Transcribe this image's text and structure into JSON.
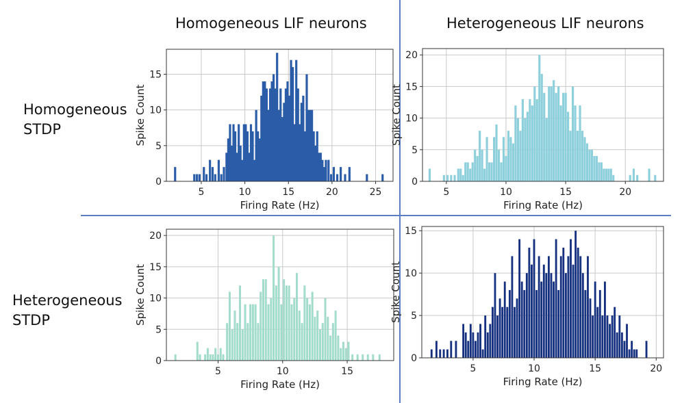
{
  "column_titles": [
    "Homogeneous LIF neurons",
    "Heterogeneous LIF neurons"
  ],
  "row_labels": [
    {
      "line1": "Homogeneous",
      "line2": "STDP"
    },
    {
      "line1": "Heterogeneous",
      "line2": "STDP"
    }
  ],
  "chart_data": [
    {
      "type": "bar",
      "panel": "homogeneous-stdp-homogeneous-lif",
      "color": "#2a5ca8",
      "xlabel": "Firing Rate (Hz)",
      "ylabel": "Spike Count",
      "xlim": [
        1,
        27
      ],
      "ylim": [
        0,
        18.5
      ],
      "xticks": [
        5,
        10,
        15,
        20,
        25
      ],
      "yticks": [
        0,
        5,
        10,
        15
      ],
      "grid": true,
      "bin_width": 0.25,
      "x": [
        2.0,
        4.2,
        4.5,
        4.8,
        5.3,
        5.6,
        6.0,
        6.3,
        6.6,
        7.0,
        7.3,
        7.6,
        7.9,
        8.1,
        8.3,
        8.5,
        8.7,
        8.9,
        9.1,
        9.3,
        9.5,
        9.7,
        9.9,
        10.1,
        10.3,
        10.5,
        10.7,
        10.9,
        11.1,
        11.3,
        11.5,
        11.7,
        11.9,
        12.1,
        12.3,
        12.5,
        12.7,
        12.9,
        13.1,
        13.3,
        13.5,
        13.7,
        13.9,
        14.1,
        14.3,
        14.5,
        14.7,
        14.9,
        15.1,
        15.3,
        15.5,
        15.7,
        15.9,
        16.1,
        16.3,
        16.5,
        16.7,
        16.9,
        17.1,
        17.3,
        17.5,
        17.7,
        17.9,
        18.1,
        18.3,
        18.5,
        18.7,
        18.9,
        19.1,
        19.3,
        19.6,
        19.9,
        20.2,
        20.6,
        21.0,
        21.5,
        22.0,
        24.0,
        25.8
      ],
      "values": [
        2,
        1,
        1,
        1,
        2,
        1,
        3,
        2,
        1,
        3,
        1,
        2,
        4,
        6,
        8,
        5,
        8,
        7,
        4,
        8,
        5,
        3,
        8,
        8,
        7,
        4,
        8,
        7,
        3,
        10,
        7,
        6,
        12,
        14,
        14,
        13,
        10,
        13,
        14,
        15,
        13,
        18,
        10,
        13,
        9,
        11,
        13,
        14,
        12,
        17,
        16,
        8,
        17,
        13,
        8,
        11,
        12,
        7,
        15,
        10,
        10,
        10,
        7,
        5,
        7,
        4,
        4,
        3,
        2,
        3,
        3,
        1,
        2,
        1,
        2,
        1,
        2,
        1,
        1
      ]
    },
    {
      "type": "bar",
      "panel": "homogeneous-stdp-heterogeneous-lif",
      "color": "#8ecfdc",
      "xlabel": "Firing Rate (Hz)",
      "ylabel": "Spike Count",
      "xlim": [
        3,
        23.2
      ],
      "ylim": [
        0,
        21
      ],
      "xticks": [
        5,
        10,
        15,
        20
      ],
      "yticks": [
        0,
        5,
        10,
        15,
        20
      ],
      "grid": true,
      "bin_width": 0.18,
      "x": [
        3.6,
        4.8,
        5.1,
        5.4,
        5.7,
        6.0,
        6.2,
        6.4,
        6.6,
        6.8,
        7.0,
        7.2,
        7.4,
        7.6,
        7.8,
        8.0,
        8.2,
        8.4,
        8.6,
        8.8,
        9.0,
        9.2,
        9.4,
        9.6,
        9.8,
        10.0,
        10.2,
        10.4,
        10.6,
        10.8,
        11.0,
        11.2,
        11.4,
        11.6,
        11.8,
        12.0,
        12.2,
        12.4,
        12.6,
        12.8,
        13.0,
        13.2,
        13.4,
        13.6,
        13.8,
        14.0,
        14.2,
        14.4,
        14.6,
        14.8,
        15.0,
        15.2,
        15.4,
        15.6,
        15.8,
        16.0,
        16.2,
        16.4,
        16.6,
        16.8,
        17.0,
        17.2,
        17.4,
        17.6,
        17.8,
        18.0,
        18.2,
        18.4,
        18.6,
        18.8,
        19.0,
        20.4,
        20.7,
        21.0,
        22.0,
        22.5
      ],
      "values": [
        2,
        1,
        1,
        1,
        1,
        2,
        2,
        1,
        3,
        3,
        2,
        3,
        5,
        4,
        8,
        5,
        2,
        7,
        3,
        3,
        7,
        9,
        5,
        3,
        7,
        4,
        8,
        7,
        6,
        12,
        10,
        8,
        13,
        10,
        11,
        13,
        12,
        15,
        13,
        20,
        17,
        14,
        10,
        15,
        15,
        16,
        14,
        15,
        12,
        14,
        14,
        11,
        8,
        15,
        12,
        8,
        12,
        8,
        7,
        6,
        5,
        5,
        4,
        4,
        3,
        3,
        2,
        2,
        2,
        2,
        1,
        1,
        2,
        1,
        2,
        1
      ]
    },
    {
      "type": "bar",
      "panel": "heterogeneous-stdp-homogeneous-lif",
      "color": "#a3dccc",
      "xlabel": "Firing Rate (Hz)",
      "ylabel": "Spike Count",
      "xlim": [
        1,
        18.6
      ],
      "ylim": [
        0,
        21
      ],
      "xticks": [
        5,
        10,
        15
      ],
      "yticks": [
        0,
        5,
        10,
        15,
        20
      ],
      "grid": true,
      "bin_width": 0.16,
      "x": [
        1.7,
        3.4,
        3.6,
        4.0,
        4.2,
        4.4,
        4.6,
        4.8,
        5.0,
        5.2,
        5.4,
        5.7,
        5.9,
        6.1,
        6.3,
        6.5,
        6.7,
        6.9,
        7.1,
        7.3,
        7.5,
        7.7,
        7.9,
        8.1,
        8.3,
        8.5,
        8.7,
        8.9,
        9.1,
        9.3,
        9.5,
        9.7,
        9.9,
        10.1,
        10.3,
        10.5,
        10.7,
        10.9,
        11.1,
        11.3,
        11.5,
        11.7,
        11.9,
        12.1,
        12.3,
        12.5,
        12.7,
        12.9,
        13.1,
        13.3,
        13.5,
        13.7,
        13.9,
        14.1,
        14.3,
        14.5,
        14.7,
        14.9,
        15.1,
        15.4,
        15.8,
        16.2,
        16.6,
        17.0,
        17.5
      ],
      "values": [
        1,
        3,
        1,
        1,
        2,
        1,
        1,
        2,
        1,
        2,
        1,
        6,
        11,
        5,
        8,
        6,
        12,
        5,
        9,
        6,
        9,
        9,
        9,
        6,
        11,
        13,
        13,
        9,
        10,
        20,
        12,
        15,
        9,
        13,
        12,
        12,
        9,
        10,
        14,
        8,
        6,
        12,
        10,
        9,
        11,
        7,
        8,
        5,
        6,
        10,
        7,
        4,
        6,
        8,
        4,
        2,
        3,
        2,
        3,
        1,
        1,
        1,
        1,
        1,
        1
      ]
    },
    {
      "type": "bar",
      "panel": "heterogeneous-stdp-heterogeneous-lif",
      "color": "#15307e",
      "xlabel": "Firing Rate (Hz)",
      "ylabel": "Spike Count",
      "xlim": [
        0.8,
        20.6
      ],
      "ylim": [
        0,
        15.5
      ],
      "xticks": [
        5,
        10,
        15,
        20
      ],
      "yticks": [
        0,
        5,
        10,
        15
      ],
      "grid": true,
      "bin_width": 0.16,
      "x": [
        1.6,
        2.0,
        2.3,
        2.6,
        2.9,
        3.2,
        3.6,
        4.2,
        4.4,
        4.6,
        4.8,
        5.0,
        5.2,
        5.4,
        5.6,
        5.8,
        6.0,
        6.2,
        6.4,
        6.6,
        6.8,
        7.0,
        7.2,
        7.4,
        7.6,
        7.8,
        8.0,
        8.2,
        8.4,
        8.6,
        8.8,
        9.0,
        9.2,
        9.4,
        9.6,
        9.8,
        10.0,
        10.2,
        10.4,
        10.6,
        10.8,
        11.0,
        11.2,
        11.4,
        11.6,
        11.8,
        12.0,
        12.2,
        12.4,
        12.6,
        12.8,
        13.0,
        13.2,
        13.4,
        13.6,
        13.8,
        14.0,
        14.2,
        14.4,
        14.6,
        14.8,
        15.0,
        15.2,
        15.4,
        15.6,
        15.8,
        16.0,
        16.2,
        16.4,
        16.6,
        16.8,
        17.0,
        17.2,
        17.4,
        17.6,
        17.8,
        18.0,
        18.2,
        18.4,
        19.2
      ],
      "values": [
        1,
        2,
        1,
        1,
        1,
        2,
        2,
        4,
        3,
        2,
        4,
        3,
        2,
        3,
        4,
        1,
        5,
        3,
        4,
        6,
        10,
        5,
        7,
        6,
        9,
        6,
        8,
        12,
        6,
        7,
        14,
        9,
        8,
        10,
        13,
        11,
        14,
        8,
        12,
        9,
        11,
        10,
        12,
        10,
        9,
        14,
        8,
        12,
        13,
        10,
        12,
        14,
        11,
        15,
        13,
        12,
        10,
        8,
        12,
        7,
        5,
        9,
        6,
        8,
        5,
        9,
        5,
        4,
        5,
        6,
        3,
        5,
        3,
        2,
        4,
        1,
        2,
        1,
        1,
        2
      ]
    }
  ]
}
